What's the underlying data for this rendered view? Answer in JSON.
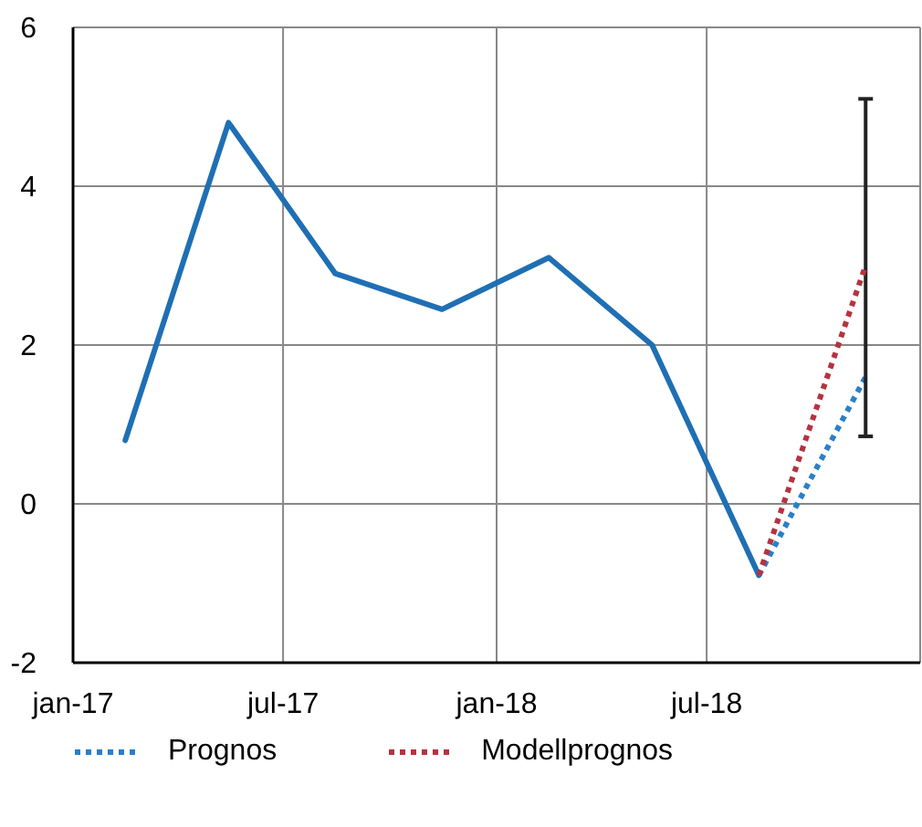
{
  "chart_data": {
    "type": "line",
    "x": [
      "2017-02-15",
      "2017-05-15",
      "2017-08-15",
      "2017-11-15",
      "2018-02-15",
      "2018-05-15",
      "2018-08-15"
    ],
    "series": [
      {
        "color": "#1f6fb4",
        "values": [
          0.8,
          4.8,
          2.9,
          2.45,
          3.1,
          2.0,
          -0.9
        ],
        "line_style": "solid"
      },
      {
        "name": "Prognos",
        "color": "#2a7fc9",
        "x": [
          "2018-08-15",
          "2018-11-15"
        ],
        "values": [
          -0.9,
          1.6
        ],
        "line_style": "dotted"
      },
      {
        "name": "Modellprognos",
        "color": "#b5333f",
        "x": [
          "2018-08-15",
          "2018-11-15"
        ],
        "values": [
          -0.9,
          3.0
        ],
        "errors": [
          null,
          [
            0.85,
            5.1
          ]
        ],
        "line_style": "dotted"
      }
    ],
    "xlim": [
      "2017-01-01",
      "2019-01-01"
    ],
    "xticks": [
      {
        "value": "2017-01-01",
        "label": "jan-17"
      },
      {
        "value": "2017-07-01",
        "label": "jul-17"
      },
      {
        "value": "2018-01-01",
        "label": "jan-18"
      },
      {
        "value": "2018-07-01",
        "label": "jul-18"
      }
    ],
    "ylim": [
      -2,
      6
    ],
    "yticks": [
      -2,
      0,
      2,
      4,
      6
    ],
    "grid": true,
    "legend": "bottom",
    "marker": "none"
  }
}
